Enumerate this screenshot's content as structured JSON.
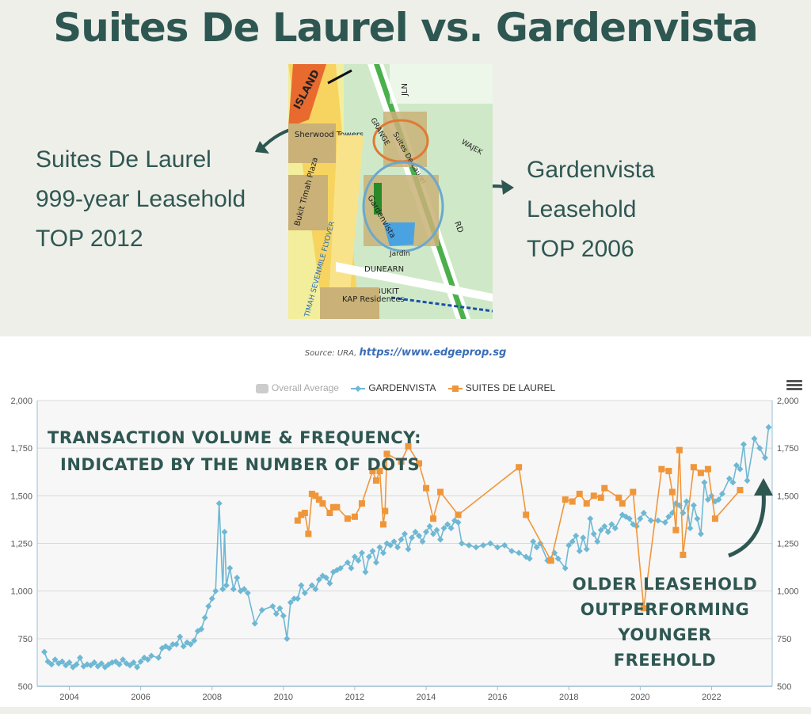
{
  "page": {
    "title": "Suites De Laurel vs. Gardenvista",
    "left_label": [
      "Suites De Laurel",
      "999-year Leasehold",
      "TOP 2012"
    ],
    "right_label": [
      "Gardenvista",
      "Leasehold",
      "TOP 2006"
    ],
    "source_prefix": "Source: URA,",
    "source_url": "https://www.edgeprop.sg",
    "annotation_1": [
      "TRANSACTION VOLUME & FREQUENCY:",
      "INDICATED BY THE NUMBER OF DOTS"
    ],
    "annotation_2": [
      "OLDER LEASEHOLD",
      "OUTPERFORMING",
      "YOUNGER FREEHOLD"
    ],
    "map_labels": {
      "island": "ISLAND",
      "sherwood": "Sherwood Towers",
      "plaza": "Bukit Timah Plaza",
      "flyover": "TIMAH SEVENMILE FLYOVER",
      "suites": "Suites De Laurel",
      "gardenvista": "Gardenvista",
      "jardin": "Jardin",
      "dunearn": "DUNEARN",
      "bukit": "BUKIT",
      "kap": "KAP Residences",
      "grange": "GRANGE",
      "rd": "RD",
      "jln": "JLN",
      "wajek": "WAJEK"
    }
  },
  "colors": {
    "title": "#2f5752",
    "gardenvista": "#6fb8d4",
    "suites": "#f0963a",
    "grid": "#d9d9d9",
    "overall": "#cccccc"
  },
  "chart_data": {
    "type": "line",
    "legend": [
      "Overall Average",
      "GARDENVISTA",
      "SUITES DE LAUREL"
    ],
    "ylim": [
      500,
      2000
    ],
    "yticks": [
      500,
      750,
      1000,
      1250,
      1500,
      1750,
      2000
    ],
    "ytick_labels": [
      "500",
      "750",
      "1,000",
      "1,250",
      "1,500",
      "1,750",
      "2,000"
    ],
    "xlim": [
      2003.1,
      2023.7
    ],
    "xticks": [
      2004,
      2006,
      2008,
      2010,
      2012,
      2014,
      2016,
      2018,
      2020,
      2022
    ],
    "series": [
      {
        "name": "GARDENVISTA",
        "marker": "diamond",
        "points": [
          [
            2003.3,
            680
          ],
          [
            2003.4,
            630
          ],
          [
            2003.5,
            615
          ],
          [
            2003.6,
            640
          ],
          [
            2003.7,
            620
          ],
          [
            2003.8,
            630
          ],
          [
            2003.9,
            610
          ],
          [
            2004.0,
            625
          ],
          [
            2004.1,
            600
          ],
          [
            2004.2,
            615
          ],
          [
            2004.3,
            650
          ],
          [
            2004.4,
            605
          ],
          [
            2004.5,
            615
          ],
          [
            2004.6,
            610
          ],
          [
            2004.7,
            625
          ],
          [
            2004.8,
            605
          ],
          [
            2004.9,
            620
          ],
          [
            2005.0,
            600
          ],
          [
            2005.1,
            615
          ],
          [
            2005.2,
            625
          ],
          [
            2005.3,
            630
          ],
          [
            2005.4,
            615
          ],
          [
            2005.5,
            640
          ],
          [
            2005.6,
            620
          ],
          [
            2005.7,
            610
          ],
          [
            2005.8,
            625
          ],
          [
            2005.9,
            600
          ],
          [
            2006.0,
            630
          ],
          [
            2006.1,
            650
          ],
          [
            2006.2,
            640
          ],
          [
            2006.3,
            660
          ],
          [
            2006.5,
            650
          ],
          [
            2006.6,
            700
          ],
          [
            2006.7,
            710
          ],
          [
            2006.8,
            700
          ],
          [
            2006.9,
            720
          ],
          [
            2007.0,
            720
          ],
          [
            2007.1,
            760
          ],
          [
            2007.2,
            710
          ],
          [
            2007.3,
            730
          ],
          [
            2007.4,
            720
          ],
          [
            2007.5,
            740
          ],
          [
            2007.6,
            790
          ],
          [
            2007.7,
            800
          ],
          [
            2007.8,
            860
          ],
          [
            2007.9,
            920
          ],
          [
            2008.0,
            960
          ],
          [
            2008.1,
            1000
          ],
          [
            2008.2,
            1460
          ],
          [
            2008.3,
            1010
          ],
          [
            2008.35,
            1310
          ],
          [
            2008.4,
            1030
          ],
          [
            2008.5,
            1120
          ],
          [
            2008.6,
            1010
          ],
          [
            2008.7,
            1070
          ],
          [
            2008.8,
            1000
          ],
          [
            2008.9,
            1010
          ],
          [
            2009.0,
            990
          ],
          [
            2009.2,
            830
          ],
          [
            2009.4,
            900
          ],
          [
            2009.7,
            920
          ],
          [
            2009.8,
            880
          ],
          [
            2009.9,
            910
          ],
          [
            2010.0,
            870
          ],
          [
            2010.1,
            750
          ],
          [
            2010.2,
            940
          ],
          [
            2010.3,
            960
          ],
          [
            2010.4,
            960
          ],
          [
            2010.5,
            1030
          ],
          [
            2010.6,
            990
          ],
          [
            2010.8,
            1030
          ],
          [
            2010.9,
            1010
          ],
          [
            2011.0,
            1060
          ],
          [
            2011.1,
            1080
          ],
          [
            2011.2,
            1070
          ],
          [
            2011.3,
            1040
          ],
          [
            2011.4,
            1100
          ],
          [
            2011.5,
            1110
          ],
          [
            2011.6,
            1120
          ],
          [
            2011.8,
            1150
          ],
          [
            2011.9,
            1120
          ],
          [
            2012.0,
            1180
          ],
          [
            2012.1,
            1160
          ],
          [
            2012.2,
            1200
          ],
          [
            2012.3,
            1100
          ],
          [
            2012.4,
            1180
          ],
          [
            2012.5,
            1210
          ],
          [
            2012.6,
            1150
          ],
          [
            2012.7,
            1230
          ],
          [
            2012.8,
            1200
          ],
          [
            2012.9,
            1250
          ],
          [
            2013.0,
            1240
          ],
          [
            2013.1,
            1260
          ],
          [
            2013.2,
            1230
          ],
          [
            2013.3,
            1270
          ],
          [
            2013.4,
            1300
          ],
          [
            2013.5,
            1220
          ],
          [
            2013.6,
            1280
          ],
          [
            2013.7,
            1310
          ],
          [
            2013.8,
            1290
          ],
          [
            2013.9,
            1260
          ],
          [
            2014.0,
            1310
          ],
          [
            2014.1,
            1340
          ],
          [
            2014.2,
            1300
          ],
          [
            2014.3,
            1320
          ],
          [
            2014.4,
            1270
          ],
          [
            2014.5,
            1330
          ],
          [
            2014.6,
            1350
          ],
          [
            2014.7,
            1330
          ],
          [
            2014.8,
            1370
          ],
          [
            2014.9,
            1360
          ],
          [
            2015.0,
            1250
          ],
          [
            2015.2,
            1240
          ],
          [
            2015.4,
            1230
          ],
          [
            2015.6,
            1240
          ],
          [
            2015.8,
            1250
          ],
          [
            2016.0,
            1230
          ],
          [
            2016.2,
            1240
          ],
          [
            2016.4,
            1210
          ],
          [
            2016.6,
            1200
          ],
          [
            2016.8,
            1180
          ],
          [
            2016.9,
            1170
          ],
          [
            2017.0,
            1260
          ],
          [
            2017.1,
            1230
          ],
          [
            2017.2,
            1250
          ],
          [
            2017.4,
            1160
          ],
          [
            2017.6,
            1200
          ],
          [
            2017.7,
            1170
          ],
          [
            2017.9,
            1120
          ],
          [
            2018.0,
            1240
          ],
          [
            2018.1,
            1260
          ],
          [
            2018.2,
            1290
          ],
          [
            2018.3,
            1210
          ],
          [
            2018.4,
            1280
          ],
          [
            2018.5,
            1220
          ],
          [
            2018.6,
            1380
          ],
          [
            2018.7,
            1300
          ],
          [
            2018.8,
            1260
          ],
          [
            2018.9,
            1320
          ],
          [
            2019.0,
            1340
          ],
          [
            2019.1,
            1310
          ],
          [
            2019.2,
            1350
          ],
          [
            2019.3,
            1330
          ],
          [
            2019.5,
            1400
          ],
          [
            2019.6,
            1390
          ],
          [
            2019.7,
            1380
          ],
          [
            2019.8,
            1350
          ],
          [
            2019.9,
            1340
          ],
          [
            2020.0,
            1380
          ],
          [
            2020.1,
            1410
          ],
          [
            2020.3,
            1370
          ],
          [
            2020.5,
            1370
          ],
          [
            2020.7,
            1360
          ],
          [
            2020.8,
            1390
          ],
          [
            2020.9,
            1410
          ],
          [
            2021.0,
            1460
          ],
          [
            2021.1,
            1450
          ],
          [
            2021.2,
            1410
          ],
          [
            2021.3,
            1470
          ],
          [
            2021.4,
            1330
          ],
          [
            2021.5,
            1450
          ],
          [
            2021.6,
            1380
          ],
          [
            2021.7,
            1300
          ],
          [
            2021.8,
            1570
          ],
          [
            2021.9,
            1480
          ],
          [
            2022.0,
            1500
          ],
          [
            2022.1,
            1470
          ],
          [
            2022.2,
            1480
          ],
          [
            2022.3,
            1510
          ],
          [
            2022.5,
            1590
          ],
          [
            2022.6,
            1570
          ],
          [
            2022.7,
            1660
          ],
          [
            2022.8,
            1640
          ],
          [
            2022.9,
            1770
          ],
          [
            2023.0,
            1580
          ],
          [
            2023.2,
            1800
          ],
          [
            2023.35,
            1750
          ],
          [
            2023.5,
            1700
          ],
          [
            2023.6,
            1860
          ]
        ]
      },
      {
        "name": "SUITES DE LAUREL",
        "marker": "square",
        "points": [
          [
            2010.4,
            1370
          ],
          [
            2010.5,
            1400
          ],
          [
            2010.6,
            1410
          ],
          [
            2010.7,
            1300
          ],
          [
            2010.8,
            1510
          ],
          [
            2010.9,
            1500
          ],
          [
            2011.0,
            1480
          ],
          [
            2011.1,
            1460
          ],
          [
            2011.3,
            1410
          ],
          [
            2011.4,
            1440
          ],
          [
            2011.5,
            1440
          ],
          [
            2011.8,
            1380
          ],
          [
            2012.0,
            1390
          ],
          [
            2012.2,
            1460
          ],
          [
            2012.5,
            1630
          ],
          [
            2012.6,
            1580
          ],
          [
            2012.7,
            1630
          ],
          [
            2012.8,
            1350
          ],
          [
            2012.85,
            1420
          ],
          [
            2012.9,
            1720
          ],
          [
            2013.3,
            1680
          ],
          [
            2013.5,
            1760
          ],
          [
            2013.8,
            1670
          ],
          [
            2014.0,
            1540
          ],
          [
            2014.2,
            1380
          ],
          [
            2014.4,
            1520
          ],
          [
            2014.9,
            1400
          ],
          [
            2016.6,
            1650
          ],
          [
            2016.8,
            1400
          ],
          [
            2017.5,
            1160
          ],
          [
            2017.9,
            1480
          ],
          [
            2018.1,
            1470
          ],
          [
            2018.3,
            1510
          ],
          [
            2018.5,
            1460
          ],
          [
            2018.7,
            1500
          ],
          [
            2018.9,
            1490
          ],
          [
            2019.0,
            1540
          ],
          [
            2019.4,
            1490
          ],
          [
            2019.5,
            1460
          ],
          [
            2019.8,
            1520
          ],
          [
            2020.1,
            910
          ],
          [
            2020.6,
            1640
          ],
          [
            2020.8,
            1630
          ],
          [
            2020.9,
            1520
          ],
          [
            2021.0,
            1320
          ],
          [
            2021.1,
            1740
          ],
          [
            2021.2,
            1190
          ],
          [
            2021.5,
            1650
          ],
          [
            2021.7,
            1620
          ],
          [
            2021.9,
            1640
          ],
          [
            2022.1,
            1380
          ],
          [
            2022.8,
            1530
          ]
        ]
      }
    ]
  }
}
